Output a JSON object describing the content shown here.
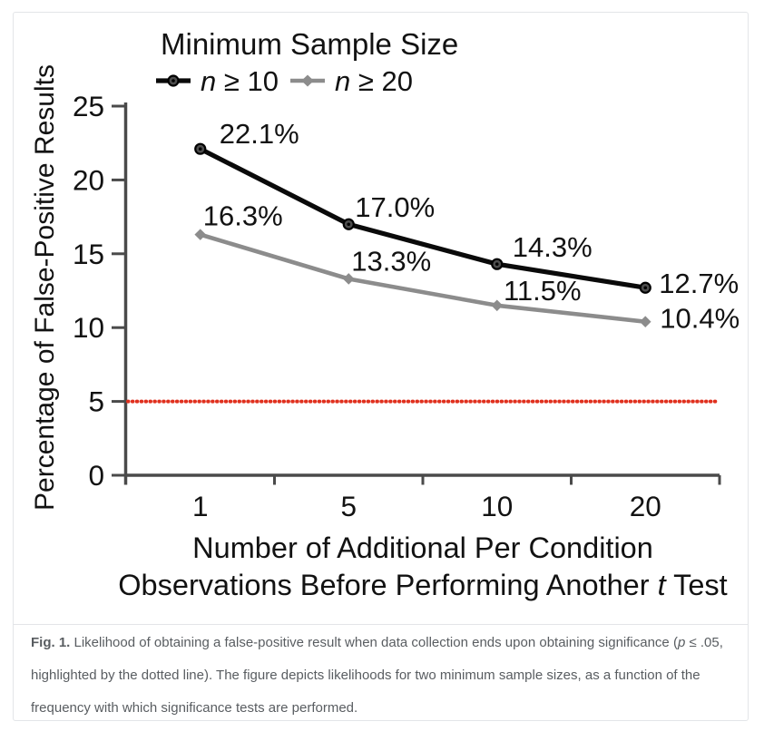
{
  "figure": {
    "caption": {
      "label": "Fig. 1.",
      "text_before_p": " Likelihood of obtaining a false-positive result when data collection ends upon obtaining significance (",
      "p_symbol": "p",
      "text_after_p": " ≤ .05, highlighted by the dotted line). The figure depicts likelihoods for two minimum sample sizes, as a function of the frequency with which significance tests are performed."
    }
  },
  "chart_data": {
    "type": "line",
    "legend_title": "Minimum Sample Size",
    "legend_position": "top",
    "grid": false,
    "x_categories": [
      "1",
      "5",
      "10",
      "20"
    ],
    "xlabel_line1": "Number of Additional Per Condition",
    "xlabel_line2_before": "Observations Before Performing Another ",
    "xlabel_line2_italic": "t",
    "xlabel_line2_after": " Test",
    "ylabel": "Percentage of False-Positive Results",
    "ylim": [
      0,
      25
    ],
    "yticks": [
      0,
      5,
      10,
      15,
      20,
      25
    ],
    "series": [
      {
        "legend_italic": "n",
        "legend_rest": " ≥ 10",
        "marker": "circle",
        "color": "#0a0a0a",
        "values": [
          22.1,
          17.0,
          14.3,
          12.7
        ],
        "labels": [
          "22.1%",
          "17.0%",
          "14.3%",
          "12.7%"
        ]
      },
      {
        "legend_italic": "n",
        "legend_rest": " ≥ 20",
        "marker": "diamond",
        "color": "#8c8c8c",
        "values": [
          16.3,
          13.3,
          11.5,
          10.4
        ],
        "labels": [
          "16.3%",
          "13.3%",
          "11.5%",
          "10.4%"
        ]
      }
    ],
    "reference_line": {
      "value": 5,
      "style": "dotted",
      "color": "#e0301e"
    },
    "axis_color": "#4a4a4a"
  }
}
